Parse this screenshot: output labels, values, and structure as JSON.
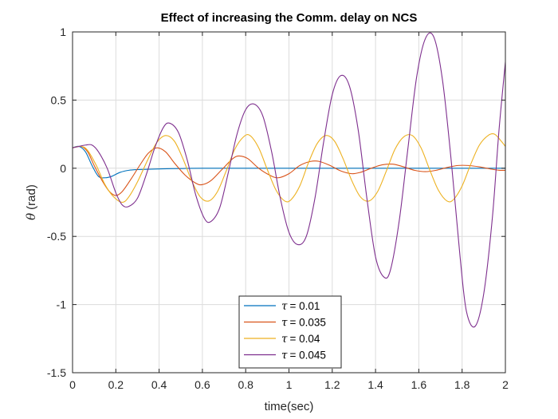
{
  "chart_data": {
    "type": "line",
    "title": "Effect of increasing the Comm. delay on NCS",
    "xlabel": "time(sec)",
    "ylabel_symbol": "θ",
    "ylabel_unit": "(rad)",
    "xlim": [
      0,
      2
    ],
    "ylim": [
      -1.5,
      1
    ],
    "xticks": [
      0,
      0.2,
      0.4,
      0.6,
      0.8,
      1,
      1.2,
      1.4,
      1.6,
      1.8,
      2
    ],
    "xtick_labels": [
      "0",
      "0.2",
      "0.4",
      "0.6",
      "0.8",
      "1",
      "1.2",
      "1.4",
      "1.6",
      "1.8",
      "2"
    ],
    "yticks": [
      -1.5,
      -1,
      -0.5,
      0,
      0.5,
      1
    ],
    "ytick_labels": [
      "-1.5",
      "-1",
      "-0.5",
      "0",
      "0.5",
      "1"
    ],
    "grid": true,
    "legend_position": "bottom-center",
    "legend_symbol": "τ",
    "series": [
      {
        "name": "τ = 0.01",
        "legend_value": "= 0.01",
        "color": "#0072BD",
        "points": [
          [
            0,
            0.15
          ],
          [
            0.03,
            0.16
          ],
          [
            0.06,
            0.12
          ],
          [
            0.09,
            0.02
          ],
          [
            0.12,
            -0.06
          ],
          [
            0.15,
            -0.07
          ],
          [
            0.18,
            -0.06
          ],
          [
            0.22,
            -0.03
          ],
          [
            0.26,
            -0.015
          ],
          [
            0.3,
            -0.01
          ],
          [
            0.4,
            -0.005
          ],
          [
            0.5,
            -0.002
          ],
          [
            0.7,
            0
          ],
          [
            2,
            0
          ]
        ]
      },
      {
        "name": "τ = 0.035",
        "legend_value": "= 0.035",
        "color": "#D95319",
        "points": [
          [
            0,
            0.15
          ],
          [
            0.04,
            0.16
          ],
          [
            0.07,
            0.12
          ],
          [
            0.1,
            0.02
          ],
          [
            0.14,
            -0.1
          ],
          [
            0.17,
            -0.17
          ],
          [
            0.2,
            -0.2
          ],
          [
            0.23,
            -0.17
          ],
          [
            0.27,
            -0.08
          ],
          [
            0.31,
            0.02
          ],
          [
            0.35,
            0.11
          ],
          [
            0.39,
            0.15
          ],
          [
            0.43,
            0.12
          ],
          [
            0.47,
            0.04
          ],
          [
            0.52,
            -0.05
          ],
          [
            0.57,
            -0.11
          ],
          [
            0.6,
            -0.12
          ],
          [
            0.64,
            -0.09
          ],
          [
            0.69,
            -0.01
          ],
          [
            0.74,
            0.07
          ],
          [
            0.77,
            0.09
          ],
          [
            0.81,
            0.07
          ],
          [
            0.86,
            0
          ],
          [
            0.91,
            -0.05
          ],
          [
            0.95,
            -0.07
          ],
          [
            1,
            -0.04
          ],
          [
            1.05,
            0.02
          ],
          [
            1.1,
            0.05
          ],
          [
            1.14,
            0.05
          ],
          [
            1.19,
            0.02
          ],
          [
            1.24,
            -0.02
          ],
          [
            1.29,
            -0.04
          ],
          [
            1.33,
            -0.03
          ],
          [
            1.38,
            0
          ],
          [
            1.43,
            0.025
          ],
          [
            1.48,
            0.03
          ],
          [
            1.53,
            0.01
          ],
          [
            1.58,
            -0.015
          ],
          [
            1.63,
            -0.025
          ],
          [
            1.68,
            -0.015
          ],
          [
            1.73,
            0.005
          ],
          [
            1.78,
            0.02
          ],
          [
            1.83,
            0.02
          ],
          [
            1.88,
            0.01
          ],
          [
            1.93,
            -0.005
          ],
          [
            1.97,
            -0.015
          ],
          [
            2,
            -0.015
          ]
        ]
      },
      {
        "name": "τ = 0.04",
        "legend_value": "= 0.04",
        "color": "#EDB120",
        "points": [
          [
            0,
            0.15
          ],
          [
            0.04,
            0.16
          ],
          [
            0.07,
            0.13
          ],
          [
            0.11,
            0.02
          ],
          [
            0.15,
            -0.12
          ],
          [
            0.19,
            -0.21
          ],
          [
            0.23,
            -0.25
          ],
          [
            0.26,
            -0.21
          ],
          [
            0.3,
            -0.1
          ],
          [
            0.35,
            0.07
          ],
          [
            0.39,
            0.19
          ],
          [
            0.43,
            0.24
          ],
          [
            0.47,
            0.2
          ],
          [
            0.51,
            0.07
          ],
          [
            0.55,
            -0.09
          ],
          [
            0.59,
            -0.21
          ],
          [
            0.63,
            -0.24
          ],
          [
            0.67,
            -0.17
          ],
          [
            0.71,
            -0.02
          ],
          [
            0.75,
            0.14
          ],
          [
            0.79,
            0.23
          ],
          [
            0.82,
            0.24
          ],
          [
            0.86,
            0.15
          ],
          [
            0.9,
            -0.01
          ],
          [
            0.94,
            -0.16
          ],
          [
            0.98,
            -0.24
          ],
          [
            1.01,
            -0.23
          ],
          [
            1.05,
            -0.13
          ],
          [
            1.09,
            0.04
          ],
          [
            1.13,
            0.18
          ],
          [
            1.17,
            0.24
          ],
          [
            1.21,
            0.2
          ],
          [
            1.25,
            0.07
          ],
          [
            1.29,
            -0.09
          ],
          [
            1.33,
            -0.21
          ],
          [
            1.37,
            -0.24
          ],
          [
            1.41,
            -0.17
          ],
          [
            1.45,
            -0.02
          ],
          [
            1.49,
            0.14
          ],
          [
            1.53,
            0.23
          ],
          [
            1.57,
            0.24
          ],
          [
            1.61,
            0.15
          ],
          [
            1.65,
            -0.01
          ],
          [
            1.69,
            -0.16
          ],
          [
            1.73,
            -0.24
          ],
          [
            1.76,
            -0.23
          ],
          [
            1.8,
            -0.13
          ],
          [
            1.84,
            0.03
          ],
          [
            1.88,
            0.17
          ],
          [
            1.92,
            0.24
          ],
          [
            1.95,
            0.25
          ],
          [
            1.98,
            0.2
          ],
          [
            2,
            0.16
          ]
        ]
      },
      {
        "name": "τ = 0.045",
        "legend_value": "= 0.045",
        "color": "#7E2F8E",
        "points": [
          [
            0,
            0.15
          ],
          [
            0.03,
            0.16
          ],
          [
            0.06,
            0.17
          ],
          [
            0.09,
            0.17
          ],
          [
            0.12,
            0.12
          ],
          [
            0.16,
            0.0
          ],
          [
            0.2,
            -0.18
          ],
          [
            0.23,
            -0.27
          ],
          [
            0.26,
            -0.28
          ],
          [
            0.3,
            -0.22
          ],
          [
            0.34,
            -0.05
          ],
          [
            0.38,
            0.15
          ],
          [
            0.42,
            0.3
          ],
          [
            0.45,
            0.33
          ],
          [
            0.49,
            0.26
          ],
          [
            0.53,
            0.06
          ],
          [
            0.57,
            -0.2
          ],
          [
            0.61,
            -0.37
          ],
          [
            0.64,
            -0.39
          ],
          [
            0.68,
            -0.29
          ],
          [
            0.72,
            -0.03
          ],
          [
            0.76,
            0.25
          ],
          [
            0.8,
            0.43
          ],
          [
            0.84,
            0.47
          ],
          [
            0.88,
            0.38
          ],
          [
            0.92,
            0.12
          ],
          [
            0.96,
            -0.22
          ],
          [
            1,
            -0.47
          ],
          [
            1.04,
            -0.56
          ],
          [
            1.08,
            -0.5
          ],
          [
            1.12,
            -0.22
          ],
          [
            1.16,
            0.19
          ],
          [
            1.2,
            0.54
          ],
          [
            1.24,
            0.68
          ],
          [
            1.28,
            0.6
          ],
          [
            1.32,
            0.28
          ],
          [
            1.36,
            -0.22
          ],
          [
            1.4,
            -0.65
          ],
          [
            1.44,
            -0.8
          ],
          [
            1.47,
            -0.74
          ],
          [
            1.51,
            -0.38
          ],
          [
            1.55,
            0.15
          ],
          [
            1.59,
            0.67
          ],
          [
            1.63,
            0.95
          ],
          [
            1.67,
            0.96
          ],
          [
            1.71,
            0.64
          ],
          [
            1.75,
            0.05
          ],
          [
            1.79,
            -0.64
          ],
          [
            1.82,
            -1.05
          ],
          [
            1.86,
            -1.16
          ],
          [
            1.9,
            -0.92
          ],
          [
            1.94,
            -0.36
          ],
          [
            1.97,
            0.27
          ],
          [
            2,
            0.78
          ]
        ]
      }
    ]
  }
}
